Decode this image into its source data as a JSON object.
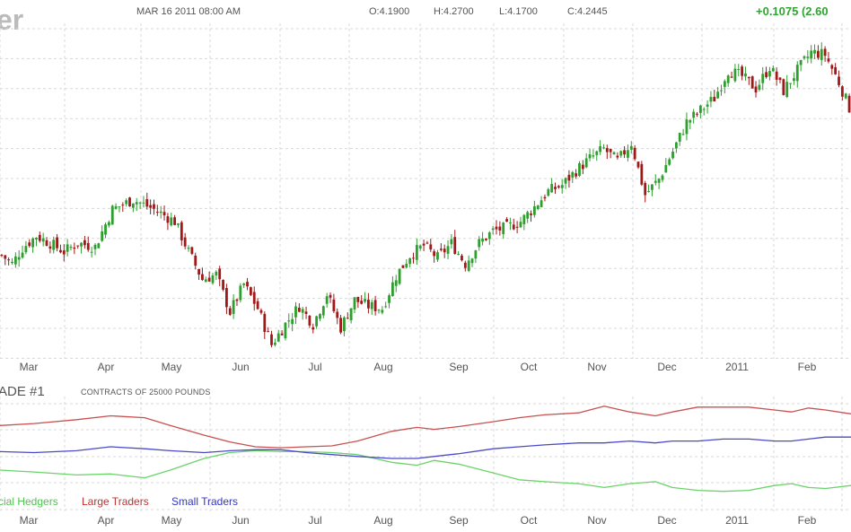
{
  "header": {
    "title_fragment": "er",
    "datetime": "MAR 16 2011 08:00 AM",
    "open": "O:4.1900",
    "high": "H:4.2700",
    "low": "L:4.1700",
    "close": "C:4.2445",
    "change": "+0.1075 (2.60"
  },
  "cot": {
    "title": "ADE #1",
    "subtitle": "CONTRACTS OF 25000 POUNDS"
  },
  "colors": {
    "up": "#2e9e2e",
    "down": "#a01818",
    "commercial": "#6ad36a",
    "large": "#c85050",
    "small": "#4a4ac8",
    "grid": "#d8d8d8"
  },
  "chart_data": [
    {
      "type": "candlestick",
      "x_labels": [
        "Mar",
        "Apr",
        "May",
        "Jun",
        "Jul",
        "Aug",
        "Sep",
        "Oct",
        "Nov",
        "Dec",
        "2011",
        "Feb"
      ],
      "close_path": [
        [
          0,
          3.02
        ],
        [
          3,
          2.95
        ],
        [
          6,
          3.08
        ],
        [
          10,
          3.18
        ],
        [
          14,
          3.12
        ],
        [
          18,
          3.05
        ],
        [
          22,
          3.12
        ],
        [
          27,
          3.09
        ],
        [
          32,
          3.4
        ],
        [
          38,
          3.48
        ],
        [
          44,
          3.4
        ],
        [
          50,
          3.3
        ],
        [
          54,
          3.05
        ],
        [
          58,
          2.82
        ],
        [
          62,
          2.86
        ],
        [
          66,
          2.55
        ],
        [
          70,
          2.78
        ],
        [
          74,
          2.58
        ],
        [
          78,
          2.28
        ],
        [
          82,
          2.45
        ],
        [
          86,
          2.6
        ],
        [
          90,
          2.45
        ],
        [
          94,
          2.7
        ],
        [
          98,
          2.42
        ],
        [
          102,
          2.65
        ],
        [
          106,
          2.6
        ],
        [
          110,
          2.58
        ],
        [
          114,
          2.85
        ],
        [
          118,
          3.02
        ],
        [
          122,
          3.1
        ],
        [
          126,
          3.0
        ],
        [
          130,
          3.12
        ],
        [
          134,
          2.95
        ],
        [
          138,
          3.12
        ],
        [
          142,
          3.22
        ],
        [
          146,
          3.25
        ],
        [
          150,
          3.3
        ],
        [
          154,
          3.42
        ],
        [
          158,
          3.55
        ],
        [
          162,
          3.6
        ],
        [
          166,
          3.72
        ],
        [
          170,
          3.82
        ],
        [
          174,
          3.9
        ],
        [
          178,
          3.8
        ],
        [
          182,
          3.95
        ],
        [
          186,
          3.52
        ],
        [
          190,
          3.65
        ],
        [
          194,
          3.88
        ],
        [
          198,
          4.12
        ],
        [
          202,
          4.22
        ],
        [
          206,
          4.32
        ],
        [
          210,
          4.55
        ],
        [
          214,
          4.5
        ],
        [
          218,
          4.4
        ],
        [
          222,
          4.58
        ],
        [
          226,
          4.38
        ],
        [
          230,
          4.55
        ],
        [
          234,
          4.7
        ],
        [
          238,
          4.68
        ],
        [
          242,
          4.45
        ],
        [
          245,
          4.24
        ]
      ],
      "candles_per_day": 1,
      "y_range": [
        2.2,
        4.85
      ],
      "grid": true
    },
    {
      "type": "line",
      "x_labels": [
        "Mar",
        "Apr",
        "May",
        "Jun",
        "Jul",
        "Aug",
        "Sep",
        "Oct",
        "Nov",
        "Dec",
        "2011",
        "Feb"
      ],
      "x_range": [
        0,
        100
      ],
      "y_range": [
        0,
        100
      ],
      "series": [
        {
          "name": "Commercial Hedgers",
          "legend_text": "cial Hedgers",
          "color_key": "commercial",
          "points": [
            [
              0,
              38
            ],
            [
              4,
              36
            ],
            [
              9,
              33
            ],
            [
              13,
              34
            ],
            [
              17,
              30
            ],
            [
              20,
              38
            ],
            [
              24,
              50
            ],
            [
              27,
              56
            ],
            [
              30,
              58
            ],
            [
              33,
              57
            ],
            [
              36,
              57
            ],
            [
              39,
              56
            ],
            [
              42,
              54
            ],
            [
              46,
              46
            ],
            [
              49,
              43
            ],
            [
              51,
              48
            ],
            [
              54,
              44
            ],
            [
              58,
              35
            ],
            [
              61,
              28
            ],
            [
              64,
              26
            ],
            [
              68,
              24
            ],
            [
              71,
              20
            ],
            [
              74,
              24
            ],
            [
              77,
              26
            ],
            [
              79,
              20
            ],
            [
              82,
              17
            ],
            [
              85,
              16
            ],
            [
              88,
              17
            ],
            [
              91,
              22
            ],
            [
              93,
              24
            ],
            [
              95,
              20
            ],
            [
              97,
              19
            ],
            [
              100,
              22
            ]
          ]
        },
        {
          "name": "Large Traders",
          "legend_text": "Large Traders",
          "color_key": "large",
          "points": [
            [
              0,
              84
            ],
            [
              4,
              86
            ],
            [
              9,
              90
            ],
            [
              13,
              94
            ],
            [
              17,
              92
            ],
            [
              20,
              84
            ],
            [
              24,
              74
            ],
            [
              27,
              67
            ],
            [
              30,
              62
            ],
            [
              33,
              61
            ],
            [
              36,
              62
            ],
            [
              39,
              63
            ],
            [
              42,
              68
            ],
            [
              46,
              78
            ],
            [
              49,
              82
            ],
            [
              51,
              80
            ],
            [
              54,
              83
            ],
            [
              58,
              88
            ],
            [
              61,
              92
            ],
            [
              64,
              95
            ],
            [
              68,
              97
            ],
            [
              71,
              104
            ],
            [
              74,
              98
            ],
            [
              77,
              94
            ],
            [
              79,
              98
            ],
            [
              82,
              103
            ],
            [
              85,
              103
            ],
            [
              88,
              103
            ],
            [
              91,
              100
            ],
            [
              93,
              98
            ],
            [
              95,
              102
            ],
            [
              97,
              100
            ],
            [
              100,
              96
            ]
          ]
        },
        {
          "name": "Small Traders",
          "legend_text": "Small Traders",
          "color_key": "small",
          "points": [
            [
              0,
              57
            ],
            [
              4,
              56
            ],
            [
              9,
              58
            ],
            [
              13,
              62
            ],
            [
              17,
              60
            ],
            [
              20,
              58
            ],
            [
              24,
              56
            ],
            [
              27,
              58
            ],
            [
              30,
              59
            ],
            [
              33,
              59
            ],
            [
              36,
              56
            ],
            [
              39,
              54
            ],
            [
              42,
              52
            ],
            [
              46,
              50
            ],
            [
              49,
              50
            ],
            [
              51,
              52
            ],
            [
              54,
              55
            ],
            [
              58,
              60
            ],
            [
              61,
              62
            ],
            [
              64,
              64
            ],
            [
              68,
              66
            ],
            [
              71,
              66
            ],
            [
              74,
              68
            ],
            [
              77,
              66
            ],
            [
              79,
              68
            ],
            [
              82,
              68
            ],
            [
              85,
              70
            ],
            [
              88,
              70
            ],
            [
              91,
              68
            ],
            [
              93,
              68
            ],
            [
              95,
              70
            ],
            [
              97,
              72
            ],
            [
              100,
              72
            ]
          ]
        }
      ],
      "grid": true
    }
  ]
}
